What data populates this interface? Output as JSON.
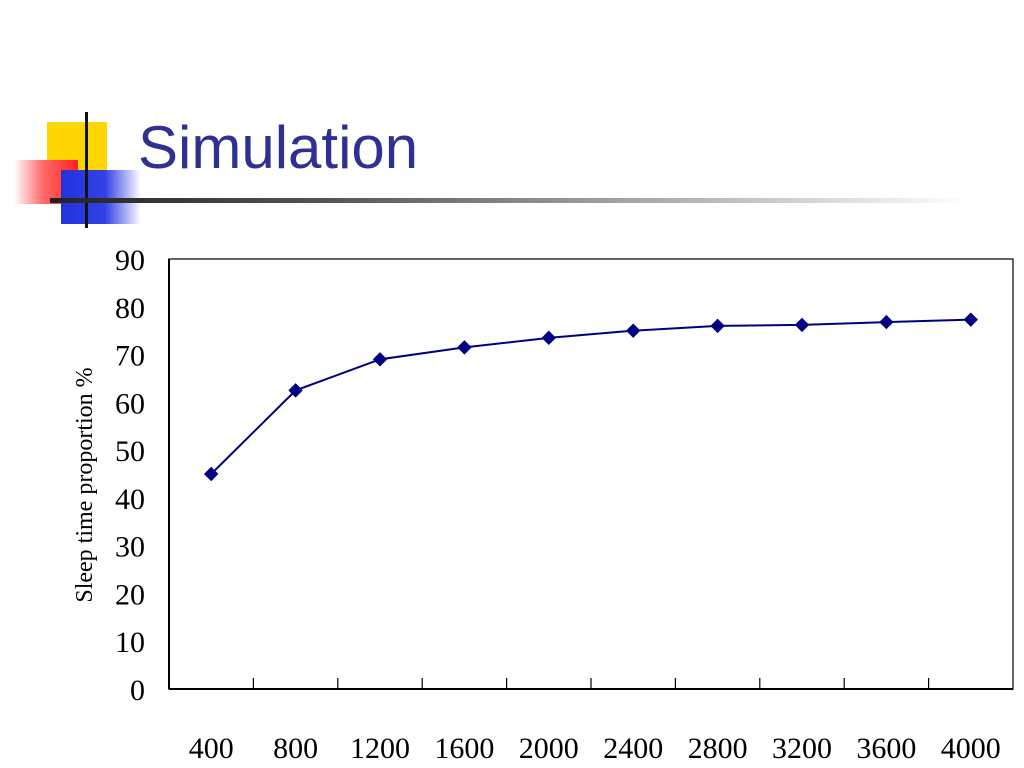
{
  "slide": {
    "title": "Simulation",
    "accent_color": "#2e3192"
  },
  "chart_data": {
    "type": "line",
    "title": "",
    "xlabel": "",
    "ylabel": "Sleep time proportion %",
    "x": [
      400,
      800,
      1200,
      1600,
      2000,
      2400,
      2800,
      3200,
      3600,
      4000
    ],
    "ylim": [
      0,
      90
    ],
    "yticks": [
      0,
      10,
      20,
      30,
      40,
      50,
      60,
      70,
      80,
      90
    ],
    "series": [
      {
        "values": [
          45,
          62.5,
          69,
          71.5,
          73.5,
          75,
          76,
          76.2,
          76.8,
          77.3
        ],
        "color": "#000080",
        "marker": "diamond"
      }
    ],
    "grid": false
  }
}
